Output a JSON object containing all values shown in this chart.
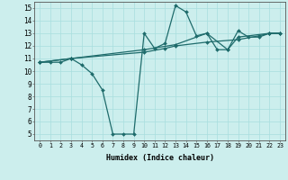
{
  "xlabel": "Humidex (Indice chaleur)",
  "xlim": [
    -0.5,
    23.5
  ],
  "ylim": [
    4.5,
    15.5
  ],
  "xticks": [
    0,
    1,
    2,
    3,
    4,
    5,
    6,
    7,
    8,
    9,
    10,
    11,
    12,
    13,
    14,
    15,
    16,
    17,
    18,
    19,
    20,
    21,
    22,
    23
  ],
  "yticks": [
    5,
    6,
    7,
    8,
    9,
    10,
    11,
    12,
    13,
    14,
    15
  ],
  "bg_color": "#cceeed",
  "line_color": "#1e6b6b",
  "lines": [
    {
      "x": [
        0,
        1,
        2,
        3,
        4,
        5,
        6,
        7,
        8,
        9,
        10,
        11,
        12,
        13,
        14,
        15,
        16,
        17,
        18,
        19,
        20,
        21,
        22,
        23
      ],
      "y": [
        10.7,
        10.7,
        10.7,
        11.0,
        10.5,
        9.8,
        8.5,
        5.0,
        5.0,
        5.0,
        13.0,
        11.8,
        12.2,
        15.2,
        14.7,
        12.8,
        13.0,
        11.7,
        11.7,
        13.2,
        12.7,
        12.7,
        13.0,
        13.0
      ]
    },
    {
      "x": [
        0,
        3,
        10,
        12,
        13,
        16,
        19,
        21,
        22,
        23
      ],
      "y": [
        10.7,
        11.0,
        11.5,
        11.8,
        12.0,
        12.3,
        12.5,
        12.8,
        13.0,
        13.0
      ]
    },
    {
      "x": [
        0,
        3,
        10,
        13,
        16,
        18,
        19,
        22,
        23
      ],
      "y": [
        10.7,
        11.0,
        11.7,
        12.1,
        13.0,
        11.7,
        12.7,
        13.0,
        13.0
      ]
    }
  ]
}
